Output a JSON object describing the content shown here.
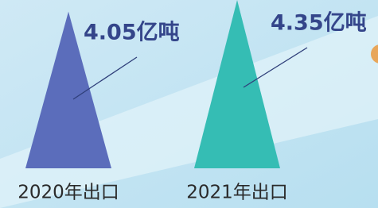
{
  "chart_data": {
    "type": "triangle",
    "categories": [
      "2020年出口",
      "2021年出口"
    ],
    "values": [
      4.05,
      4.35
    ],
    "value_labels": [
      "4.05亿吨",
      "4.35亿吨"
    ],
    "colors": [
      "#5b6dbb",
      "#35bdb4"
    ]
  }
}
